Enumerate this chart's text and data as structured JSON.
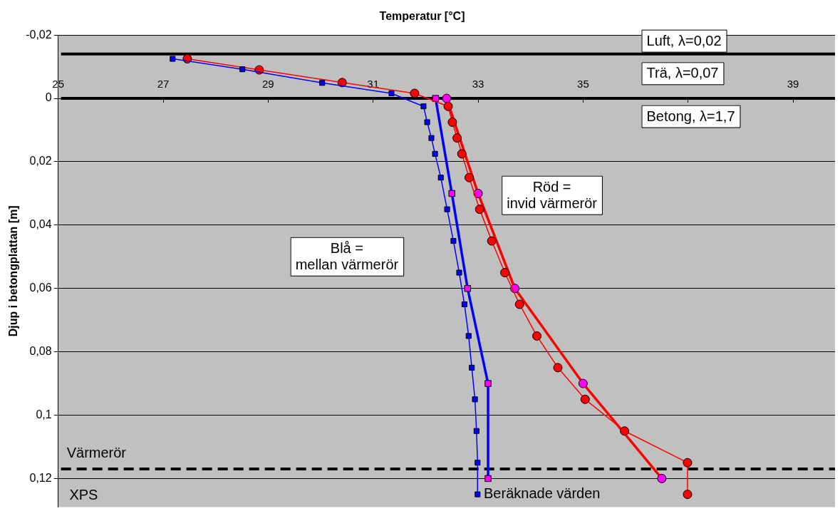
{
  "chart_data": {
    "type": "line",
    "xlabel": "Temperatur [°C]",
    "ylabel": "Djup i betongplattan [m]",
    "xlim": [
      25,
      39.8
    ],
    "xticks": [
      25,
      27,
      29,
      31,
      33,
      35,
      {
        "value": 37,
        "label": null
      },
      39
    ],
    "ylim": [
      0.129,
      -0.02
    ],
    "yticks": [
      {
        "value": -0.02,
        "label": "-0,02"
      },
      0,
      {
        "value": 0.02,
        "label": "0,02"
      },
      {
        "value": 0.04,
        "label": "0,04"
      },
      {
        "value": 0.06,
        "label": "0,06"
      },
      {
        "value": 0.08,
        "label": "0,08"
      },
      {
        "value": 0.1,
        "label": "0,1"
      },
      {
        "value": 0.12,
        "label": "0,12"
      }
    ],
    "grid": "y",
    "legend": false,
    "line_style": "solid",
    "series": [
      {
        "color": "#0000ff",
        "marker": "square",
        "x": [
          27.18,
          28.51,
          30.03,
          31.35,
          31.96,
          32.03,
          32.11,
          32.18,
          32.29,
          32.41,
          32.53,
          32.64,
          32.74,
          32.82,
          32.88,
          32.94,
          32.97,
          32.99,
          32.99
        ],
        "values": [
          -0.0125,
          -0.0092,
          -0.0049,
          -0.0016,
          0.0025,
          0.0075,
          0.0125,
          0.0175,
          0.025,
          0.035,
          0.045,
          0.055,
          0.065,
          0.075,
          0.085,
          0.095,
          0.105,
          0.115,
          0.125
        ]
      },
      {
        "color": "#ff0000",
        "marker": "circle",
        "x": [
          27.46,
          28.83,
          30.41,
          31.79,
          32.43,
          32.51,
          32.6,
          32.69,
          32.83,
          33.03,
          33.26,
          33.51,
          33.79,
          34.12,
          34.52,
          35.04,
          35.79,
          36.99,
          36.99
        ],
        "values": [
          -0.0125,
          -0.009,
          -0.005,
          -0.0016,
          0.0025,
          0.0075,
          0.0125,
          0.0175,
          0.025,
          0.035,
          0.045,
          0.055,
          0.065,
          0.075,
          0.085,
          0.095,
          0.105,
          0.115,
          0.125
        ]
      },
      {
        "name": "Beräknade värden",
        "color": "#0000ff",
        "colors": [
          "#ff00ff",
          "#ff00ff",
          "#ff00ff",
          "#ff00ff",
          "#ff00ff"
        ],
        "marker": "square",
        "x": [
          32.19,
          32.5,
          32.8,
          33.19,
          33.19
        ],
        "values": [
          0,
          0.03,
          0.06,
          0.09,
          0.12
        ]
      },
      {
        "color": "#ff0000",
        "colors": [
          "#ff00ff",
          "#ff00ff",
          "#ff00ff",
          "#ff00ff",
          "#ff00ff"
        ],
        "marker": "circle",
        "x": [
          32.4,
          33.0,
          33.7,
          35.0,
          36.5
        ],
        "values": [
          0,
          0.03,
          0.06,
          0.09,
          0.12
        ]
      }
    ],
    "ref_lines": [
      {
        "axis": "y",
        "value": -0.014,
        "color": "#000000",
        "line_style": "solid"
      },
      {
        "axis": "y",
        "value": 0,
        "color": "#000000",
        "line_style": "solid"
      },
      {
        "axis": "y",
        "value": 0.117,
        "color": "#000000",
        "line_style": "dashed",
        "label": "Värmerör"
      }
    ],
    "annotations": [
      "Luft, λ=0,02",
      "Trä, λ=0,07",
      "Betong, λ=1,7",
      "Röd =\ninvid värmerör",
      "Blå =\nmellan värmerör",
      "XPS"
    ]
  }
}
